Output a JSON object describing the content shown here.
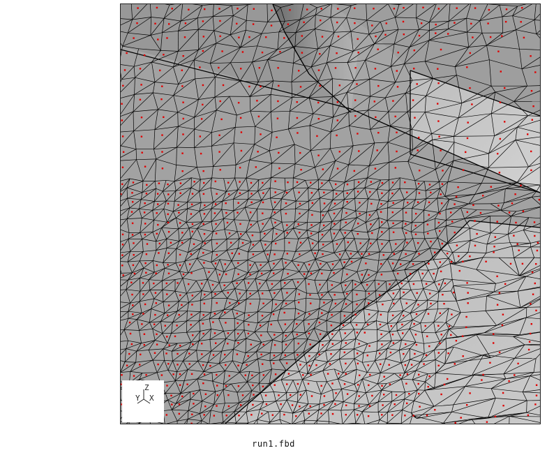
{
  "viewport": {
    "filename": "run1.fbd",
    "axes": {
      "z": "Z",
      "y": "Y",
      "x": "X"
    },
    "colors": {
      "background": "#ffffff",
      "surface_dark": "#8e8e8e",
      "surface_mid": "#a9a9a9",
      "surface_light": "#c8c8c8",
      "mesh_edge": "#000000",
      "node": "#e00000"
    }
  }
}
